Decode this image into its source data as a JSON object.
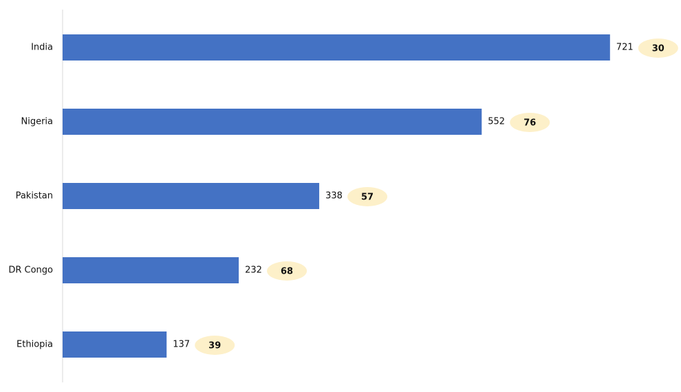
{
  "chart_data": {
    "type": "bar",
    "orientation": "horizontal",
    "categories": [
      "India",
      "Nigeria",
      "Pakistan",
      "DR Congo",
      "Ethiopia"
    ],
    "values": [
      721,
      552,
      338,
      232,
      137
    ],
    "badge_values": [
      30,
      76,
      57,
      68,
      39
    ],
    "color": "#4472c4",
    "badge_color": "#fdf0c9",
    "xlim": [
      0,
      800
    ]
  }
}
